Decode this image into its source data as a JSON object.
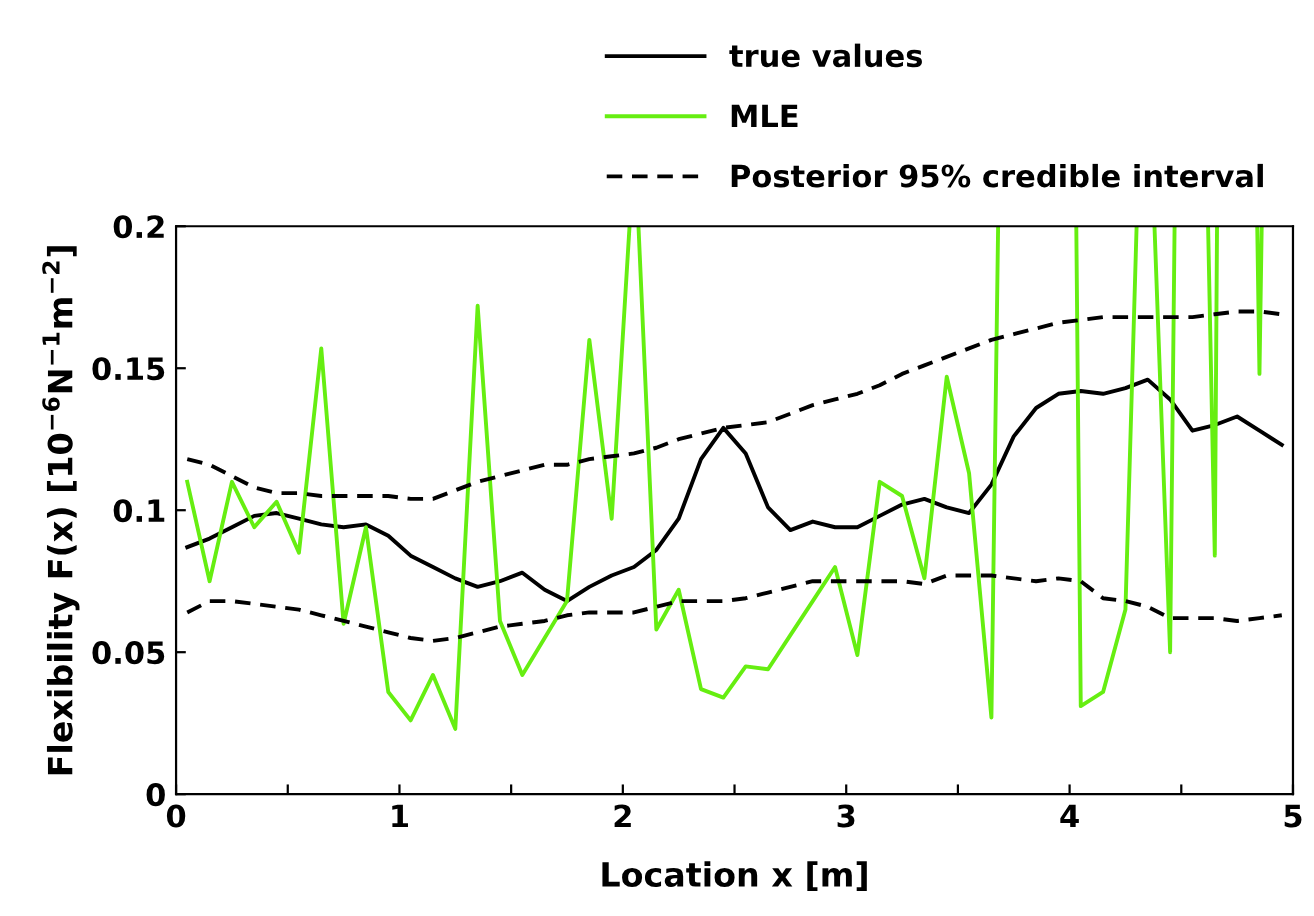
{
  "chart_data": {
    "type": "line",
    "xlabel": "Location x [m]",
    "ylabel": "Flexibility F(x) [10$^{−6}$N$^{−1}$m$^{−2}$]",
    "x": [
      0.05,
      0.15,
      0.25,
      0.35,
      0.45,
      0.55,
      0.65,
      0.75,
      0.85,
      0.95,
      1.05,
      1.15,
      1.25,
      1.35,
      1.45,
      1.55,
      1.65,
      1.75,
      1.85,
      1.95,
      2.05,
      2.15,
      2.25,
      2.35,
      2.45,
      2.55,
      2.65,
      2.75,
      2.85,
      2.95,
      3.05,
      3.15,
      3.25,
      3.35,
      3.45,
      3.55,
      3.65,
      3.75,
      3.85,
      3.95,
      4.05,
      4.15,
      4.25,
      4.35,
      4.45,
      4.55,
      4.65,
      4.75,
      4.85,
      4.95
    ],
    "series": [
      {
        "name": "true values",
        "color": "#000000",
        "line_style": "solid",
        "values": [
          0.087,
          0.09,
          0.094,
          0.098,
          0.099,
          0.097,
          0.095,
          0.094,
          0.095,
          0.091,
          0.084,
          0.08,
          0.076,
          0.073,
          0.075,
          0.078,
          0.072,
          0.068,
          0.073,
          0.077,
          0.08,
          0.086,
          0.097,
          0.118,
          0.129,
          0.12,
          0.101,
          0.093,
          0.096,
          0.094,
          0.094,
          0.098,
          0.102,
          0.104,
          0.101,
          0.099,
          0.109,
          0.126,
          0.136,
          0.141,
          0.142,
          0.141,
          0.143,
          0.146,
          0.139,
          0.128,
          0.13,
          0.133,
          0.128,
          0.123
        ]
      },
      {
        "name": "MLE",
        "color": "#66ee11",
        "line_style": "solid",
        "x": [
          0.05,
          0.15,
          0.25,
          0.35,
          0.45,
          0.55,
          0.65,
          0.75,
          0.85,
          0.95,
          1.05,
          1.15,
          1.25,
          1.35,
          1.45,
          1.55,
          1.65,
          1.75,
          1.85,
          1.95,
          2.03,
          2.05,
          2.07,
          2.15,
          2.25,
          2.35,
          2.45,
          2.55,
          2.65,
          2.75,
          2.85,
          2.95,
          3.05,
          3.15,
          3.25,
          3.35,
          3.45,
          3.55,
          3.65,
          3.68,
          3.85,
          4.03,
          4.05,
          4.15,
          4.25,
          4.3,
          4.34,
          4.38,
          4.45,
          4.47,
          4.55,
          4.62,
          4.65,
          4.66,
          4.75,
          4.84,
          4.85,
          4.86
        ],
        "values": [
          0.11,
          0.075,
          0.11,
          0.094,
          0.103,
          0.085,
          0.157,
          0.06,
          0.094,
          0.036,
          0.026,
          0.042,
          0.023,
          0.172,
          0.061,
          0.042,
          0.055,
          0.068,
          0.16,
          0.097,
          0.2,
          null,
          0.2,
          0.058,
          0.072,
          0.037,
          0.034,
          0.045,
          0.044,
          0.056,
          0.068,
          0.08,
          0.049,
          0.11,
          0.105,
          0.076,
          0.147,
          0.113,
          0.027,
          0.2,
          null,
          0.2,
          0.031,
          0.036,
          0.065,
          0.2,
          null,
          0.2,
          0.05,
          0.2,
          null,
          0.2,
          0.084,
          0.2,
          null,
          0.2,
          0.148,
          0.2
        ]
      },
      {
        "name": "Posterior 95% credible interval",
        "color": "#000000",
        "line_style": "dashed",
        "values": [
          0.118,
          0.116,
          0.112,
          0.108,
          0.106,
          0.106,
          0.105,
          0.105,
          0.105,
          0.105,
          0.104,
          0.104,
          0.107,
          0.11,
          0.112,
          0.114,
          0.116,
          0.116,
          0.118,
          0.119,
          0.12,
          0.122,
          0.125,
          0.127,
          0.129,
          0.13,
          0.131,
          0.134,
          0.137,
          0.139,
          0.141,
          0.144,
          0.148,
          0.151,
          0.154,
          0.157,
          0.16,
          0.162,
          0.164,
          0.166,
          0.167,
          0.168,
          0.168,
          0.168,
          0.168,
          0.168,
          0.169,
          0.17,
          0.17,
          0.169
        ]
      },
      {
        "color": "#000000",
        "line_style": "dashed",
        "values": [
          0.064,
          0.068,
          0.068,
          0.067,
          0.066,
          0.065,
          0.063,
          0.061,
          0.059,
          0.057,
          0.055,
          0.054,
          0.055,
          0.057,
          0.059,
          0.06,
          0.061,
          0.063,
          0.064,
          0.064,
          0.064,
          0.066,
          0.068,
          0.068,
          0.068,
          0.069,
          0.071,
          0.073,
          0.075,
          0.075,
          0.075,
          0.075,
          0.075,
          0.074,
          0.077,
          0.077,
          0.077,
          0.076,
          0.075,
          0.076,
          0.075,
          0.069,
          0.068,
          0.066,
          0.062,
          0.062,
          0.062,
          0.061,
          0.062,
          0.063
        ]
      }
    ],
    "xlim": [
      0,
      5
    ],
    "ylim": [
      0,
      0.2
    ],
    "xticks": [
      0,
      {
        "value": 0.5,
        "label": null
      },
      1,
      {
        "value": 1.5,
        "label": null
      },
      2,
      {
        "value": 2.5,
        "label": null
      },
      3,
      {
        "value": 3.5,
        "label": null
      },
      4,
      {
        "value": 4.5,
        "label": null
      },
      5
    ],
    "yticks": [
      0,
      0.05,
      0.1,
      0.15,
      0.2
    ],
    "grid": false,
    "legend": "top right",
    "marker": "none"
  }
}
